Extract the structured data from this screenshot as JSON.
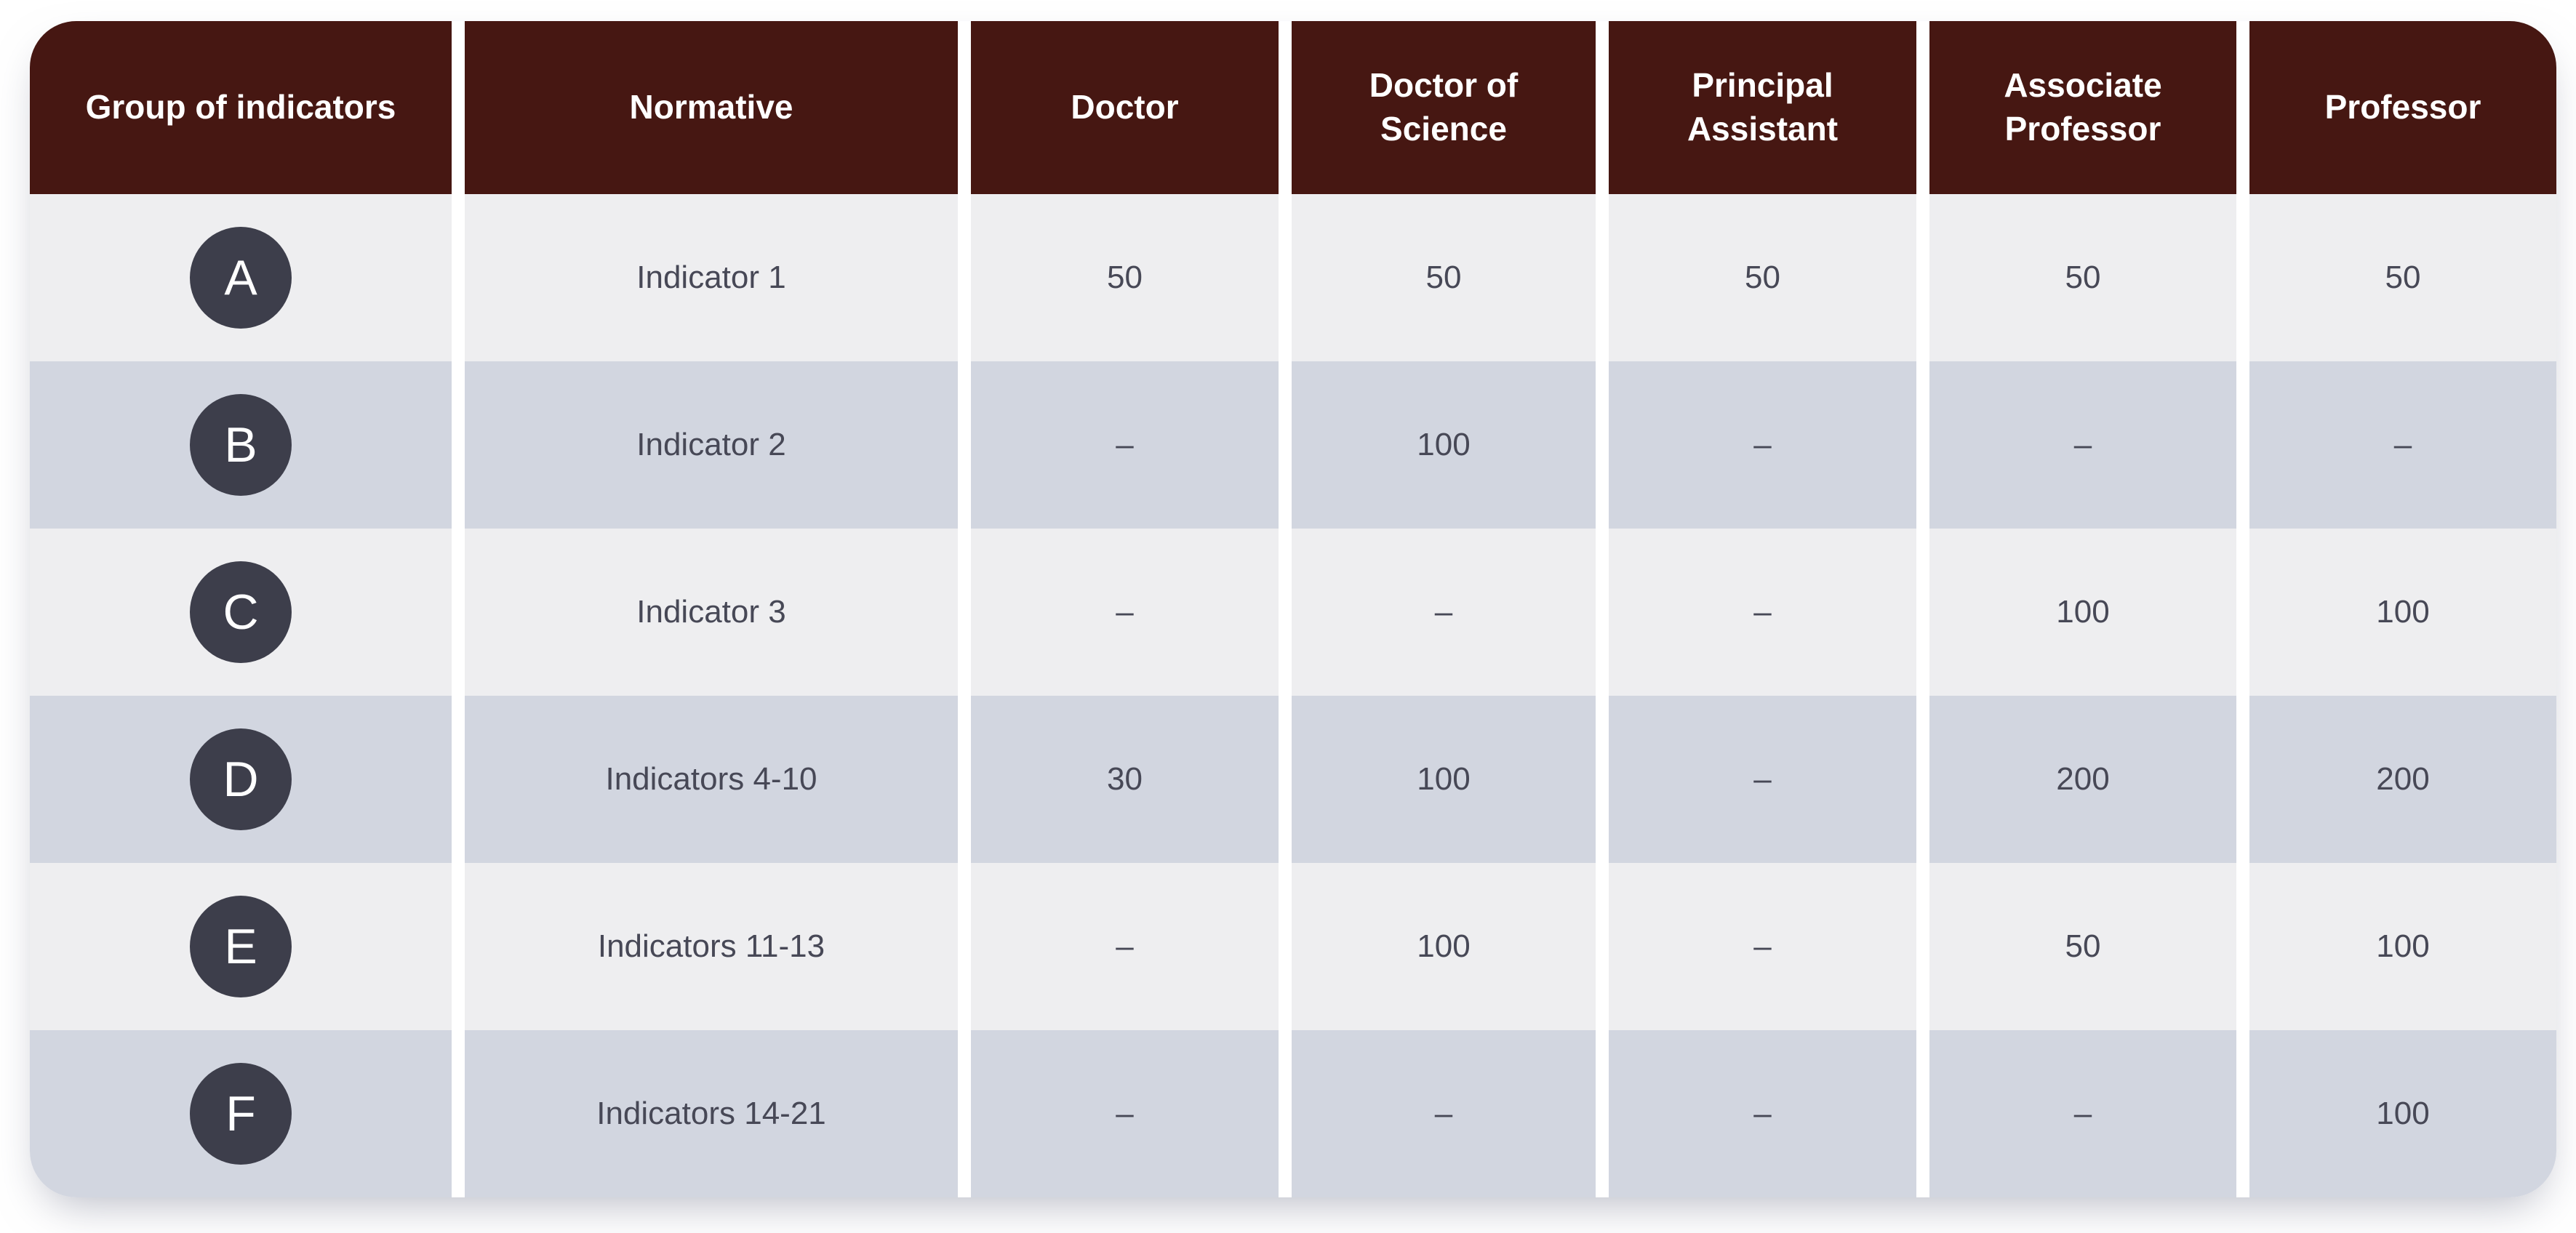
{
  "colors": {
    "header_bg": "#461712",
    "row_light": "#eeeef0",
    "row_dark": "#d2d6e0",
    "badge_bg": "#3d3e4b",
    "header_text": "#ffffff",
    "cell_text": "#474856",
    "gutter": "#ffffff"
  },
  "chart_data": {
    "type": "table",
    "columns": [
      "Group of indicators",
      "Normative",
      "Doctor",
      "Doctor of Science",
      "Principal Assistant",
      "Associate Professor",
      "Professor"
    ],
    "rows": [
      {
        "group": "A",
        "normative": "Indicator 1",
        "values": [
          "50",
          "50",
          "50",
          "50",
          "50"
        ]
      },
      {
        "group": "B",
        "normative": "Indicator 2",
        "values": [
          "–",
          "100",
          "–",
          "–",
          "–"
        ]
      },
      {
        "group": "C",
        "normative": "Indicator 3",
        "values": [
          "–",
          "–",
          "–",
          "100",
          "100"
        ]
      },
      {
        "group": "D",
        "normative": "Indicators 4-10",
        "values": [
          "30",
          "100",
          "–",
          "200",
          "200"
        ]
      },
      {
        "group": "E",
        "normative": "Indicators 11-13",
        "values": [
          "–",
          "100",
          "–",
          "50",
          "100"
        ]
      },
      {
        "group": "F",
        "normative": "Indicators 14-21",
        "values": [
          "–",
          "–",
          "–",
          "–",
          "100"
        ]
      }
    ]
  }
}
